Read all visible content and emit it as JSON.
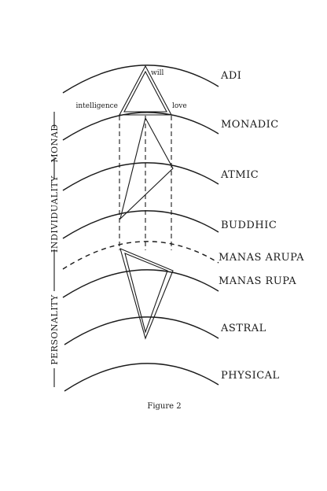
{
  "planes": {
    "adi": "ADI",
    "monadic": "MONADIC",
    "atmic": "ATMIC",
    "buddhic": "BUDDHIC",
    "manas_arupa": "MANAS ARUPA",
    "manas_rupa": "MANAS RUPA",
    "astral": "ASTRAL",
    "physical": "PHYSICAL"
  },
  "triangle_labels": {
    "will": "will",
    "intelligence": "intelligence",
    "love": "love"
  },
  "side_labels": {
    "monad": "MONAD",
    "individuality": "INDIVIDUALITY",
    "personality": "PERSONALITY"
  },
  "caption": "Figure 2"
}
